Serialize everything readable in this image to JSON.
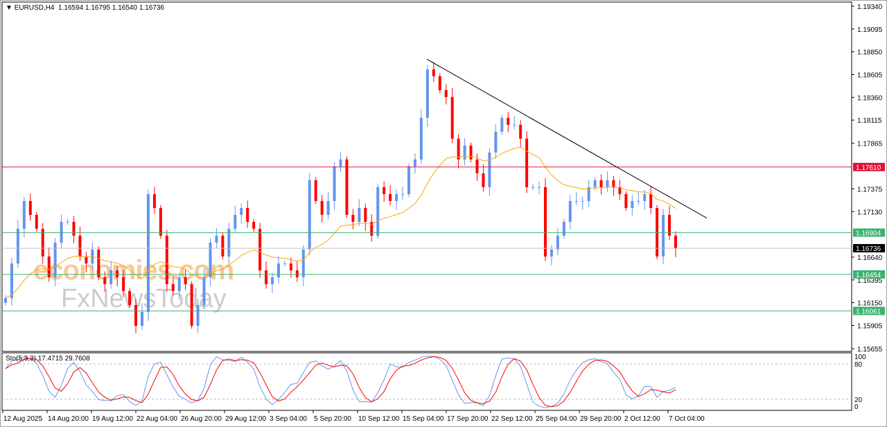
{
  "header": {
    "symbol_timeframe": "EURUSD,H4",
    "ohlc": "1.16594 1.16795 1.16540 1.16736"
  },
  "watermark": {
    "logo1": "economies.com",
    "logo2": "FxNewsToday"
  },
  "colors": {
    "bull": "#6495ED",
    "bear": "#FF0000",
    "ma": "#FFA500",
    "resistance": "#DC143C",
    "support": "#3CB371",
    "current": "#000000",
    "stoch_main": "#6495ED",
    "stoch_signal": "#FF0000",
    "trendline": "#000000"
  },
  "price_axis": {
    "labels": [
      "1.19340",
      "1.19095",
      "1.18850",
      "1.18605",
      "1.18360",
      "1.18115",
      "1.17865",
      "1.17375",
      "1.17130",
      "1.16640",
      "1.16395",
      "1.16150",
      "1.15905",
      "1.15655"
    ],
    "range": [
      1.15655,
      1.1934
    ]
  },
  "levels": [
    {
      "price": "1.17610",
      "type": "resistance"
    },
    {
      "price": "1.16904",
      "type": "support"
    },
    {
      "price": "1.16454",
      "type": "support"
    },
    {
      "price": "1.16061",
      "type": "support"
    },
    {
      "price": "1.16736",
      "type": "current"
    }
  ],
  "trendline": {
    "from_price": 1.1877,
    "to_price": 1.1706
  },
  "time_axis": {
    "labels": [
      "12 Aug 2025",
      "14 Aug 20:00",
      "19 Aug 12:00",
      "22 Aug 04:00",
      "26 Aug 20:00",
      "29 Aug 12:00",
      "3 Sep 04:00",
      "5 Sep 20:00",
      "10 Sep 12:00",
      "15 Sep 04:00",
      "17 Sep 20:00",
      "22 Sep 12:00",
      "25 Sep 04:00",
      "29 Sep 20:00",
      "2 Oct 12:00",
      "7 Oct 04:00"
    ]
  },
  "closes": [
    1.16199,
    1.16572,
    1.16945,
    1.17244,
    1.17095,
    1.16945,
    1.16647,
    1.16423,
    1.16796,
    1.1702,
    1.1702,
    1.16871,
    1.16647,
    1.16572,
    1.16722,
    1.16423,
    1.16349,
    1.16498,
    1.16423,
    1.16274,
    1.16125,
    1.15901,
    1.1605,
    1.17318,
    1.17169,
    1.16871,
    1.16349,
    1.16274,
    1.16423,
    1.16349,
    1.15901,
    1.16125,
    1.16423,
    1.16796,
    1.16871,
    1.16647,
    1.16945,
    1.17095,
    1.17169,
    1.1702,
    1.16945,
    1.16498,
    1.16349,
    1.16423,
    1.16572,
    1.16572,
    1.16498,
    1.16423,
    1.16722,
    1.17468,
    1.17244,
    1.17095,
    1.17244,
    1.17617,
    1.17691,
    1.17095,
    1.1702,
    1.17169,
    1.1702,
    1.16871,
    1.17393,
    1.17318,
    1.17244,
    1.17318,
    1.17318,
    1.17617,
    1.17691,
    1.18139,
    1.18661,
    1.18587,
    1.18437,
    1.18363,
    1.17915,
    1.17691,
    1.17841,
    1.17691,
    1.17542,
    1.17393,
    1.17766,
    1.1799,
    1.18139,
    1.18064,
    1.18064,
    1.17915,
    1.17393,
    1.17393,
    1.17393,
    1.16647,
    1.16722,
    1.16871,
    1.1702,
    1.17244,
    1.17244,
    1.17244,
    1.17393,
    1.17468,
    1.17393,
    1.17468,
    1.17393,
    1.17318,
    1.17169,
    1.17244,
    1.17244,
    1.17318,
    1.17169,
    1.16647,
    1.17095,
    1.16871,
    1.16736
  ],
  "stochastic": {
    "label": "Sto(5,3,3) 17.4715 29.7608",
    "levels": [
      "100",
      "80",
      "20",
      "0"
    ]
  }
}
